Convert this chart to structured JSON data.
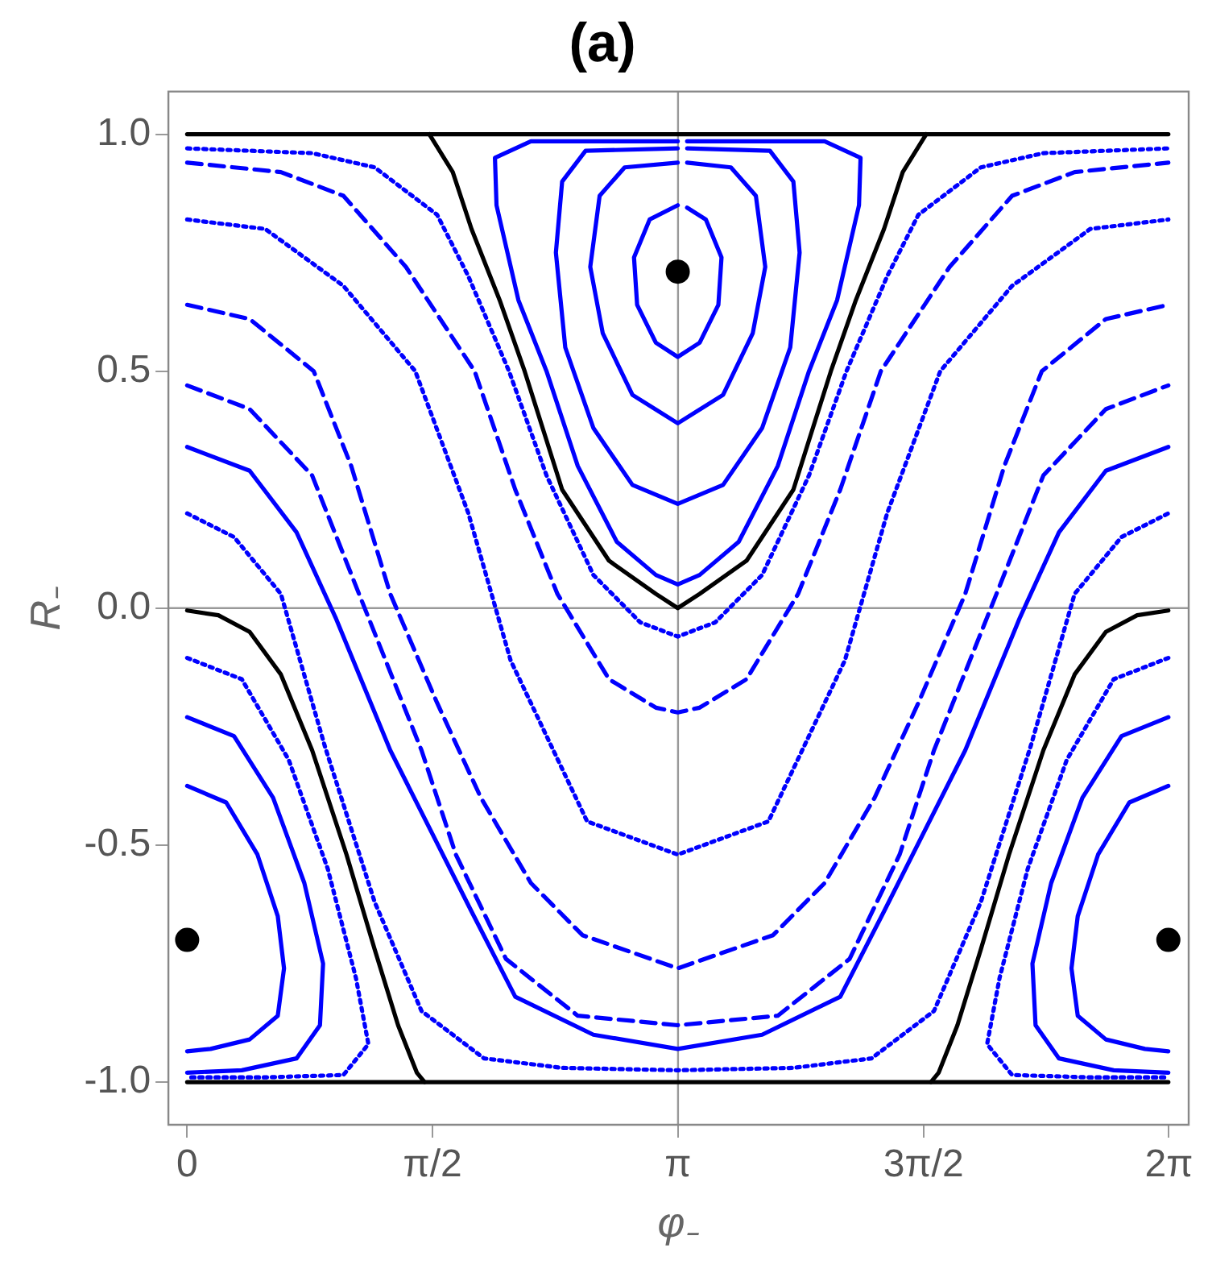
{
  "chart_data": {
    "type": "line",
    "title": "(a)",
    "xlabel": "φ₋",
    "ylabel": "R₋",
    "xlim": [
      -0.12,
      6.41
    ],
    "ylim": [
      -1.09,
      1.09
    ],
    "xticks": [
      {
        "value": 0,
        "label": "0"
      },
      {
        "value": 1.5708,
        "label": "π/2"
      },
      {
        "value": 3.1416,
        "label": "π"
      },
      {
        "value": 4.7124,
        "label": "3π/2"
      },
      {
        "value": 6.2832,
        "label": "2π"
      }
    ],
    "yticks": [
      {
        "value": -1,
        "label": "-1.0"
      },
      {
        "value": -0.5,
        "label": "-0.5"
      },
      {
        "value": 0,
        "label": "0.0"
      },
      {
        "value": 0.5,
        "label": "0.5"
      },
      {
        "value": 1,
        "label": "1.0"
      }
    ],
    "grid": false,
    "legend": false,
    "ref_lines": [
      {
        "axis": "x",
        "value": 3.1416,
        "color": "#999999"
      },
      {
        "axis": "y",
        "value": 0,
        "color": "#999999"
      }
    ],
    "series": [
      {
        "color": "#0000ff",
        "line_style": "dotted",
        "x": [
          0,
          0.8,
          1.2,
          1.6,
          1.8,
          2.06,
          2.3,
          2.6,
          2.9,
          3.14,
          3.38,
          3.68,
          3.98,
          4.22,
          4.48,
          4.68,
          5.08,
          5.48,
          6.28
        ],
        "values": [
          0.97,
          0.96,
          0.93,
          0.83,
          0.7,
          0.5,
          0.28,
          0.07,
          -0.03,
          -0.06,
          -0.03,
          0.07,
          0.28,
          0.5,
          0.7,
          0.83,
          0.93,
          0.96,
          0.97
        ]
      },
      {
        "color": "#0000ff",
        "line_style": "dashed",
        "x": [
          0,
          0.6,
          1.0,
          1.4,
          1.84,
          2.1,
          2.37,
          2.7,
          3.0,
          3.14,
          3.28,
          3.58,
          3.91,
          4.18,
          4.44,
          4.88,
          5.28,
          5.68,
          6.28
        ],
        "values": [
          0.94,
          0.92,
          0.87,
          0.72,
          0.5,
          0.25,
          0.03,
          -0.15,
          -0.21,
          -0.22,
          -0.21,
          -0.15,
          0.03,
          0.25,
          0.5,
          0.72,
          0.87,
          0.92,
          0.94
        ]
      },
      {
        "color": "#0000ff",
        "line_style": "dotted",
        "x": [
          0,
          0.5,
          1.0,
          1.46,
          1.8,
          2.07,
          2.56,
          3.14,
          3.72,
          4.21,
          4.48,
          4.82,
          5.28,
          5.78,
          6.28
        ],
        "values": [
          0.82,
          0.8,
          0.68,
          0.5,
          0.2,
          -0.11,
          -0.45,
          -0.52,
          -0.45,
          -0.11,
          0.2,
          0.5,
          0.68,
          0.8,
          0.82
        ]
      },
      {
        "color": "#0000ff",
        "line_style": "dashed",
        "x": [
          0,
          0.4,
          0.81,
          1.05,
          1.3,
          1.6,
          1.88,
          2.2,
          2.53,
          3.14,
          3.75,
          4.08,
          4.4,
          4.68,
          4.98,
          5.23,
          5.47,
          5.88,
          6.28
        ],
        "values": [
          0.64,
          0.61,
          0.5,
          0.3,
          0.03,
          -0.2,
          -0.4,
          -0.58,
          -0.69,
          -0.76,
          -0.69,
          -0.58,
          -0.4,
          -0.2,
          0.03,
          0.3,
          0.5,
          0.61,
          0.64
        ]
      },
      {
        "color": "#0000ff",
        "line_style": "dashed",
        "x": [
          0,
          0.4,
          0.8,
          1.1,
          1.5,
          1.72,
          2.04,
          2.5,
          3.14,
          3.78,
          4.24,
          4.56,
          4.78,
          5.18,
          5.48,
          5.88,
          6.28
        ],
        "values": [
          0.47,
          0.42,
          0.28,
          0.03,
          -0.3,
          -0.52,
          -0.74,
          -0.86,
          -0.88,
          -0.86,
          -0.74,
          -0.52,
          -0.3,
          0.03,
          0.28,
          0.42,
          0.47
        ]
      },
      {
        "color": "#0000ff",
        "line_style": "solid",
        "x": [
          0,
          0.4,
          0.7,
          0.95,
          1.3,
          1.82,
          2.1,
          2.6,
          3.14,
          3.68,
          4.18,
          4.46,
          4.98,
          5.33,
          5.58,
          5.88,
          6.28
        ],
        "values": [
          0.34,
          0.29,
          0.16,
          -0.02,
          -0.3,
          -0.64,
          -0.82,
          -0.9,
          -0.93,
          -0.9,
          -0.82,
          -0.64,
          -0.3,
          -0.02,
          0.16,
          0.29,
          0.34
        ]
      },
      {
        "color": "#0000ff",
        "line_style": "dotted",
        "x": [
          0,
          0.3,
          0.6,
          0.88,
          1.2,
          1.5,
          1.9,
          2.4,
          3.14,
          3.88,
          4.38,
          4.78,
          5.08,
          5.4,
          5.68,
          5.98,
          6.28
        ],
        "values": [
          0.2,
          0.15,
          0.03,
          -0.29,
          -0.62,
          -0.85,
          -0.95,
          -0.97,
          -0.975,
          -0.97,
          -0.95,
          -0.85,
          -0.62,
          -0.29,
          0.03,
          0.15,
          0.2
        ]
      },
      {
        "color": "#0000ff",
        "line_style": "solid",
        "x": [
          3.14,
          2.96,
          2.86,
          2.88,
          3.0,
          3.14,
          3.28,
          3.4,
          3.42,
          3.32,
          3.2
        ],
        "values": [
          0.85,
          0.82,
          0.74,
          0.64,
          0.56,
          0.53,
          0.56,
          0.64,
          0.74,
          0.82,
          0.845
        ]
      },
      {
        "color": "#0000ff",
        "line_style": "solid",
        "x": [
          3.14,
          2.8,
          2.64,
          2.58,
          2.66,
          2.85,
          3.14,
          3.43,
          3.62,
          3.7,
          3.64,
          3.48,
          3.2
        ],
        "values": [
          0.94,
          0.93,
          0.87,
          0.72,
          0.58,
          0.45,
          0.39,
          0.45,
          0.58,
          0.72,
          0.87,
          0.93,
          0.94
        ]
      },
      {
        "color": "#0000ff",
        "line_style": "solid",
        "x": [
          3.14,
          2.55,
          2.4,
          2.36,
          2.42,
          2.6,
          2.85,
          3.14,
          3.43,
          3.68,
          3.86,
          3.92,
          3.88,
          3.73,
          3.2
        ],
        "values": [
          0.97,
          0.965,
          0.9,
          0.75,
          0.55,
          0.38,
          0.26,
          0.22,
          0.26,
          0.38,
          0.55,
          0.75,
          0.9,
          0.965,
          0.97
        ]
      },
      {
        "color": "#0000ff",
        "line_style": "solid",
        "x": [
          3.14,
          2.2,
          1.97,
          1.98,
          2.12,
          2.3,
          2.5,
          2.75,
          3.0,
          3.14,
          3.28,
          3.53,
          3.78,
          3.98,
          4.16,
          4.3,
          4.31,
          4.08,
          3.2
        ],
        "values": [
          0.985,
          0.985,
          0.95,
          0.85,
          0.65,
          0.5,
          0.3,
          0.14,
          0.07,
          0.05,
          0.07,
          0.14,
          0.3,
          0.5,
          0.65,
          0.85,
          0.95,
          0.985,
          0.985
        ]
      },
      {
        "color": "#0000ff",
        "line_style": "solid",
        "x": [
          0,
          0.25,
          0.45,
          0.58,
          0.62,
          0.58,
          0.4,
          0.15,
          0
        ],
        "values": [
          -0.375,
          -0.41,
          -0.52,
          -0.65,
          -0.76,
          -0.86,
          -0.91,
          -0.93,
          -0.935
        ]
      },
      {
        "color": "#0000ff",
        "line_style": "solid",
        "x": [
          6.28,
          6.03,
          5.83,
          5.7,
          5.66,
          5.7,
          5.88,
          6.13,
          6.28
        ],
        "values": [
          -0.375,
          -0.41,
          -0.52,
          -0.65,
          -0.76,
          -0.86,
          -0.91,
          -0.93,
          -0.935
        ]
      },
      {
        "color": "#0000ff",
        "line_style": "solid",
        "x": [
          0,
          0.3,
          0.55,
          0.75,
          0.87,
          0.85,
          0.7,
          0.35,
          0
        ],
        "values": [
          -0.23,
          -0.27,
          -0.4,
          -0.58,
          -0.75,
          -0.88,
          -0.95,
          -0.975,
          -0.98
        ]
      },
      {
        "color": "#0000ff",
        "line_style": "solid",
        "x": [
          6.28,
          5.98,
          5.73,
          5.53,
          5.41,
          5.43,
          5.58,
          5.93,
          6.28
        ],
        "values": [
          -0.23,
          -0.27,
          -0.4,
          -0.58,
          -0.75,
          -0.88,
          -0.95,
          -0.975,
          -0.98
        ]
      },
      {
        "color": "#0000ff",
        "line_style": "dotted",
        "x": [
          0,
          0.35,
          0.65,
          0.9,
          1.08,
          1.16,
          1.0,
          0.5,
          0
        ],
        "values": [
          -0.105,
          -0.15,
          -0.32,
          -0.55,
          -0.78,
          -0.92,
          -0.985,
          -0.99,
          -0.99
        ]
      },
      {
        "color": "#0000ff",
        "line_style": "dotted",
        "x": [
          6.28,
          5.93,
          5.63,
          5.38,
          5.2,
          5.12,
          5.28,
          5.78,
          6.28
        ],
        "values": [
          -0.105,
          -0.15,
          -0.32,
          -0.55,
          -0.78,
          -0.92,
          -0.985,
          -0.99,
          -0.99
        ]
      },
      {
        "color": "#000000",
        "line_style": "solid",
        "x": [
          0,
          6.28
        ],
        "values": [
          1,
          1
        ]
      },
      {
        "color": "#000000",
        "line_style": "solid",
        "x": [
          0,
          6.28
        ],
        "values": [
          -1,
          -1
        ]
      },
      {
        "color": "#000000",
        "line_style": "solid",
        "x": [
          1.55,
          1.7,
          1.82,
          2.0,
          2.16,
          2.4,
          2.7,
          3.0,
          3.14,
          3.28,
          3.58,
          3.88,
          4.12,
          4.28,
          4.46,
          4.58,
          4.73
        ],
        "values": [
          1,
          0.92,
          0.8,
          0.65,
          0.5,
          0.25,
          0.1,
          0.03,
          0,
          0.03,
          0.1,
          0.25,
          0.5,
          0.65,
          0.8,
          0.92,
          1
        ]
      },
      {
        "color": "#000000",
        "line_style": "solid",
        "x": [
          0,
          0.2,
          0.4,
          0.6,
          0.8,
          1.02,
          1.2,
          1.35,
          1.47,
          1.52
        ],
        "values": [
          -0.005,
          -0.015,
          -0.05,
          -0.14,
          -0.3,
          -0.52,
          -0.72,
          -0.88,
          -0.98,
          -1
        ]
      },
      {
        "color": "#000000",
        "line_style": "solid",
        "x": [
          4.76,
          4.81,
          4.93,
          5.08,
          5.26,
          5.48,
          5.68,
          5.88,
          6.08,
          6.28
        ],
        "values": [
          -1,
          -0.98,
          -0.88,
          -0.72,
          -0.52,
          -0.3,
          -0.14,
          -0.05,
          -0.015,
          -0.005
        ]
      },
      {
        "type": "scatter",
        "color": "#000000",
        "marker": "circle",
        "x": [
          3.14,
          0,
          6.28
        ],
        "values": [
          0.71,
          -0.7,
          -0.7
        ]
      }
    ]
  }
}
